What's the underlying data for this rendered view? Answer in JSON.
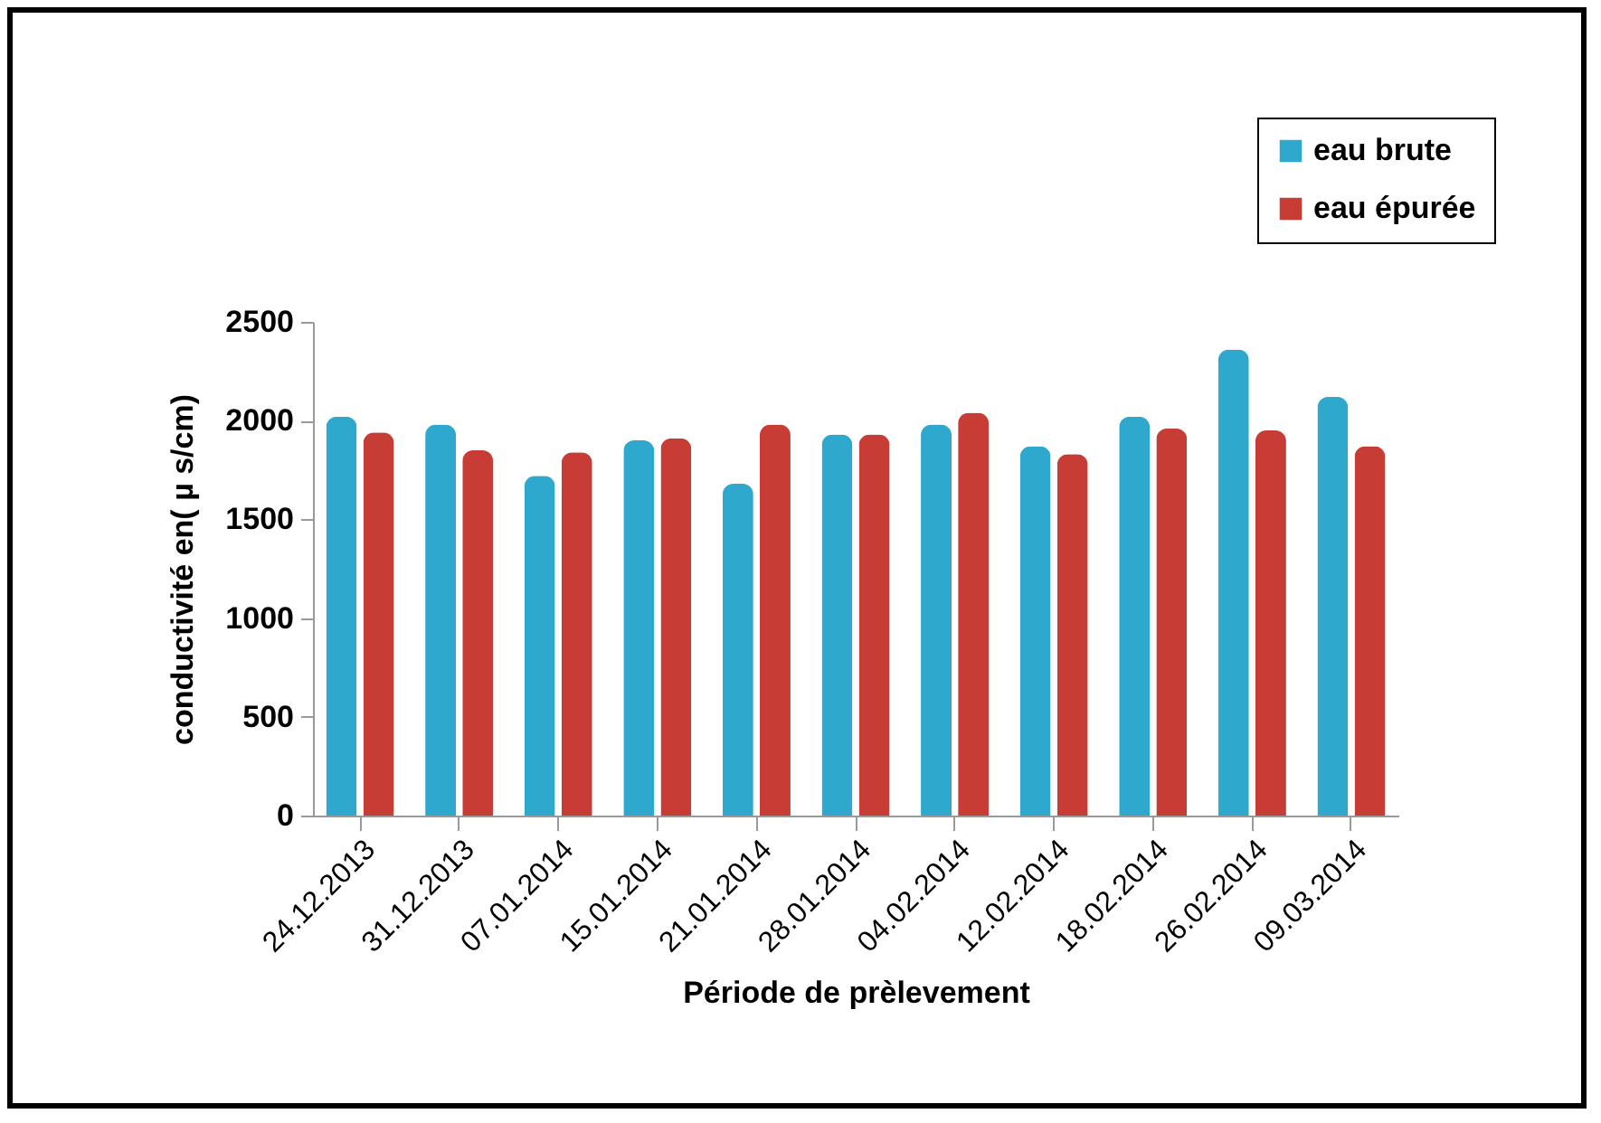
{
  "chart_data": {
    "type": "bar",
    "xlabel": "Période de prèlevement",
    "ylabel": "conductivité en( µ s/cm)",
    "categories": [
      "24.12.2013",
      "31.12.2013",
      "07.01.2014",
      "15.01.2014",
      "21.01.2014",
      "28.01.2014",
      "04.02.2014",
      "12.02.2014",
      "18.02.2014",
      "26.02.2014",
      "09.03.2014"
    ],
    "series": [
      {
        "name": "eau brute",
        "color": "#2ea8cc",
        "values": [
          2020,
          1980,
          1720,
          1900,
          1680,
          1930,
          1980,
          1870,
          2020,
          2360,
          2120
        ]
      },
      {
        "name": "eau épurée",
        "color": "#c83c36",
        "values": [
          1940,
          1850,
          1840,
          1910,
          1980,
          1930,
          2040,
          1830,
          1960,
          1950,
          1870
        ]
      }
    ],
    "ylim": [
      0,
      2500
    ],
    "yticks": [
      0,
      500,
      1000,
      1500,
      2000,
      2500
    ],
    "grid": false,
    "legend": "top right"
  }
}
